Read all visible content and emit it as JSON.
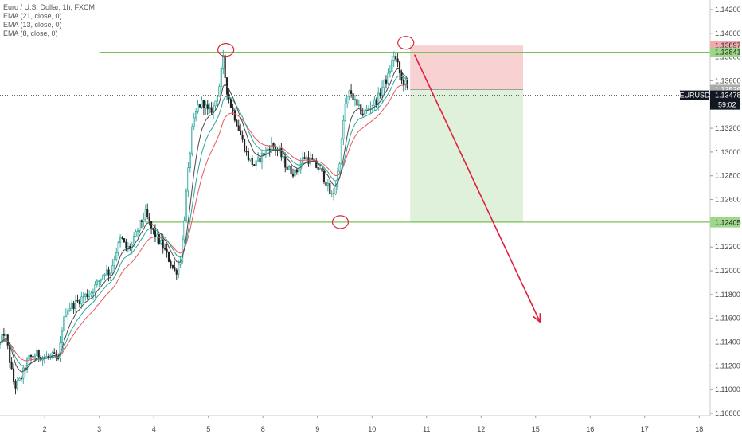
{
  "chart_data": {
    "type": "candlestick",
    "title": "Euro / U.S. Dollar, 1h, FXCM",
    "indicators": [
      {
        "label": "EMA (21, close, 0)",
        "color": "#e8585c"
      },
      {
        "label": "EMA (13, close, 0)",
        "color": "#2aa59a"
      },
      {
        "label": "EMA (8, close, 0)",
        "color": "#4a4a4a"
      }
    ],
    "x_ticks": [
      {
        "label": "2",
        "x": 2.0
      },
      {
        "label": "3",
        "x": 3.0
      },
      {
        "label": "4",
        "x": 4.0
      },
      {
        "label": "5",
        "x": 5.0
      },
      {
        "label": "8",
        "x": 6.0
      },
      {
        "label": "9",
        "x": 7.0
      },
      {
        "label": "10",
        "x": 8.0
      },
      {
        "label": "11",
        "x": 9.0
      },
      {
        "label": "12",
        "x": 10.0
      },
      {
        "label": "15",
        "x": 11.0
      },
      {
        "label": "16",
        "x": 12.0
      },
      {
        "label": "17",
        "x": 13.0
      },
      {
        "label": "18",
        "x": 14.0
      }
    ],
    "xlim": [
      1.18,
      14.2
    ],
    "ylim": [
      1.1078,
      1.1428
    ],
    "y_ticks": [
      "1.14200",
      "1.14000",
      "1.13800",
      "1.13600",
      "1.13400",
      "1.13200",
      "1.13000",
      "1.12800",
      "1.12600",
      "1.12400",
      "1.12200",
      "1.12000",
      "1.11800",
      "1.11600",
      "1.11400",
      "1.11200",
      "1.11000",
      "1.10800"
    ],
    "price_path": [
      {
        "x": 1.18,
        "y": 1.1138
      },
      {
        "x": 1.25,
        "y": 1.1148
      },
      {
        "x": 1.3,
        "y": 1.1142
      },
      {
        "x": 1.38,
        "y": 1.1118
      },
      {
        "x": 1.45,
        "y": 1.1102
      },
      {
        "x": 1.55,
        "y": 1.1108
      },
      {
        "x": 1.7,
        "y": 1.1126
      },
      {
        "x": 1.85,
        "y": 1.113
      },
      {
        "x": 2.0,
        "y": 1.1127
      },
      {
        "x": 2.15,
        "y": 1.1128
      },
      {
        "x": 2.25,
        "y": 1.1124
      },
      {
        "x": 2.32,
        "y": 1.1152
      },
      {
        "x": 2.4,
        "y": 1.1168
      },
      {
        "x": 2.55,
        "y": 1.1172
      },
      {
        "x": 2.7,
        "y": 1.1178
      },
      {
        "x": 2.85,
        "y": 1.1182
      },
      {
        "x": 3.0,
        "y": 1.1192
      },
      {
        "x": 3.1,
        "y": 1.12
      },
      {
        "x": 3.2,
        "y": 1.1198
      },
      {
        "x": 3.3,
        "y": 1.1215
      },
      {
        "x": 3.4,
        "y": 1.1228
      },
      {
        "x": 3.5,
        "y": 1.1218
      },
      {
        "x": 3.6,
        "y": 1.1222
      },
      {
        "x": 3.75,
        "y": 1.124
      },
      {
        "x": 3.85,
        "y": 1.1248
      },
      {
        "x": 3.95,
        "y": 1.1236
      },
      {
        "x": 4.05,
        "y": 1.1228
      },
      {
        "x": 4.15,
        "y": 1.1222
      },
      {
        "x": 4.25,
        "y": 1.1212
      },
      {
        "x": 4.4,
        "y": 1.1198
      },
      {
        "x": 4.5,
        "y": 1.1212
      },
      {
        "x": 4.6,
        "y": 1.1268
      },
      {
        "x": 4.7,
        "y": 1.1318
      },
      {
        "x": 4.8,
        "y": 1.1338
      },
      {
        "x": 4.9,
        "y": 1.1342
      },
      {
        "x": 5.0,
        "y": 1.1333
      },
      {
        "x": 5.1,
        "y": 1.1338
      },
      {
        "x": 5.2,
        "y": 1.1356
      },
      {
        "x": 5.27,
        "y": 1.1378
      },
      {
        "x": 5.33,
        "y": 1.1354
      },
      {
        "x": 5.42,
        "y": 1.1338
      },
      {
        "x": 5.52,
        "y": 1.1325
      },
      {
        "x": 5.62,
        "y": 1.131
      },
      {
        "x": 5.72,
        "y": 1.1296
      },
      {
        "x": 5.85,
        "y": 1.1288
      },
      {
        "x": 6.0,
        "y": 1.1298
      },
      {
        "x": 6.15,
        "y": 1.1306
      },
      {
        "x": 6.3,
        "y": 1.13
      },
      {
        "x": 6.45,
        "y": 1.1286
      },
      {
        "x": 6.6,
        "y": 1.1282
      },
      {
        "x": 6.75,
        "y": 1.1296
      },
      {
        "x": 6.9,
        "y": 1.1292
      },
      {
        "x": 7.05,
        "y": 1.1284
      },
      {
        "x": 7.15,
        "y": 1.1276
      },
      {
        "x": 7.25,
        "y": 1.1262
      },
      {
        "x": 7.32,
        "y": 1.1268
      },
      {
        "x": 7.42,
        "y": 1.1298
      },
      {
        "x": 7.5,
        "y": 1.1338
      },
      {
        "x": 7.6,
        "y": 1.1352
      },
      {
        "x": 7.72,
        "y": 1.1338
      },
      {
        "x": 7.85,
        "y": 1.1332
      },
      {
        "x": 7.95,
        "y": 1.1338
      },
      {
        "x": 8.1,
        "y": 1.1344
      },
      {
        "x": 8.2,
        "y": 1.1356
      },
      {
        "x": 8.3,
        "y": 1.1364
      },
      {
        "x": 8.4,
        "y": 1.1382
      },
      {
        "x": 8.48,
        "y": 1.1372
      },
      {
        "x": 8.55,
        "y": 1.1358
      },
      {
        "x": 8.6,
        "y": 1.136
      },
      {
        "x": 8.65,
        "y": 1.1352
      }
    ],
    "candle_noise": 0.00045,
    "support_line": {
      "value": 1.1241,
      "x_start": 3.85,
      "label": "1.12410"
    },
    "resistance_line": {
      "value": 1.1384,
      "x_start": 3.0,
      "label": "1.13841"
    },
    "current_price": {
      "value": 1.13478,
      "symbol": "EURUSD",
      "label": "1.13478",
      "countdown": "59:02"
    },
    "position": {
      "x_start": 8.7,
      "x_end": 10.77,
      "stop": 1.13897,
      "entry": 1.13526,
      "target": 1.12405,
      "stop_label": "1.13897",
      "entry_label": "1.13526",
      "target_label": "1.12405"
    },
    "arrow": {
      "from": [
        8.78,
        1.1382
      ],
      "to": [
        11.08,
        1.1157
      ]
    },
    "highlight_circles": [
      {
        "x": 5.32,
        "y": 1.1386
      },
      {
        "x": 7.42,
        "y": 1.1241
      },
      {
        "x": 8.62,
        "y": 1.1392
      }
    ],
    "colors": {
      "up": "#26a69a",
      "down": "#222222",
      "support": "#7cbf5a",
      "stop_zone": "#f7caca",
      "profit_zone": "#dcefd6",
      "arrow": "#e01e3c",
      "circle": "#d9283c",
      "last_price_tag": "#131722",
      "stop_tag": "#f2a8ad",
      "support_tag": "#9ed78a",
      "entry_tag": "#aaaaaa"
    }
  }
}
